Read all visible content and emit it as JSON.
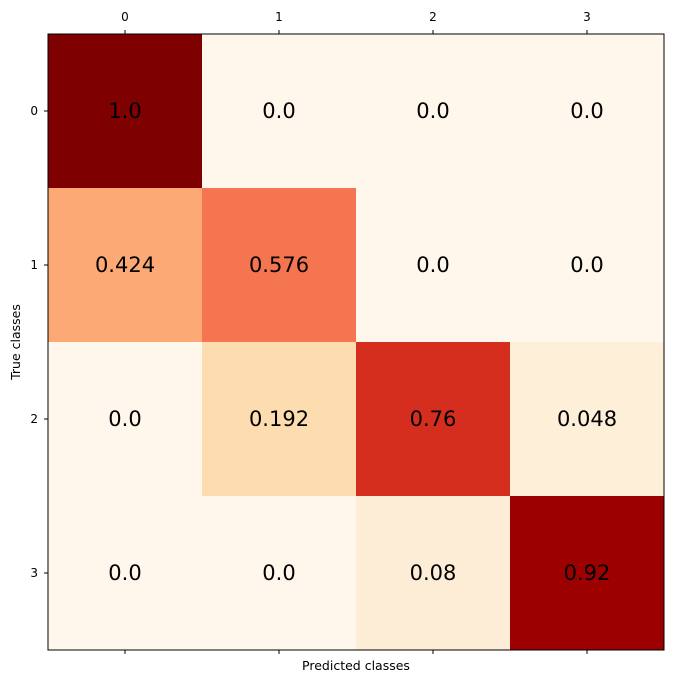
{
  "chart_data": {
    "type": "heatmap",
    "colormap": "OrRd",
    "x_categories": [
      "0",
      "1",
      "2",
      "3"
    ],
    "y_categories": [
      "0",
      "1",
      "2",
      "3"
    ],
    "xlabel": "Predicted classes",
    "ylabel": "True classes",
    "x_ticks_position": "top",
    "values": [
      [
        1.0,
        0.0,
        0.0,
        0.0
      ],
      [
        0.424,
        0.576,
        0.0,
        0.0
      ],
      [
        0.0,
        0.192,
        0.76,
        0.048
      ],
      [
        0.0,
        0.0,
        0.08,
        0.92
      ]
    ],
    "value_labels": [
      [
        "1.0",
        "0.0",
        "0.0",
        "0.0"
      ],
      [
        "0.424",
        "0.576",
        "0.0",
        "0.0"
      ],
      [
        "0.0",
        "0.192",
        "0.76",
        "0.048"
      ],
      [
        "0.0",
        "0.0",
        "0.08",
        "0.92"
      ]
    ],
    "colors": [
      [
        "#7f0000",
        "#fff7ec",
        "#fff7ec",
        "#fff7ec"
      ],
      [
        "#fca976",
        "#f4754f",
        "#fff7ec",
        "#fff7ec"
      ],
      [
        "#fff7ec",
        "#fddcaf",
        "#d52d1e",
        "#feefd9"
      ],
      [
        "#fff7ec",
        "#fff7ec",
        "#feedd6",
        "#9c0000"
      ]
    ]
  }
}
